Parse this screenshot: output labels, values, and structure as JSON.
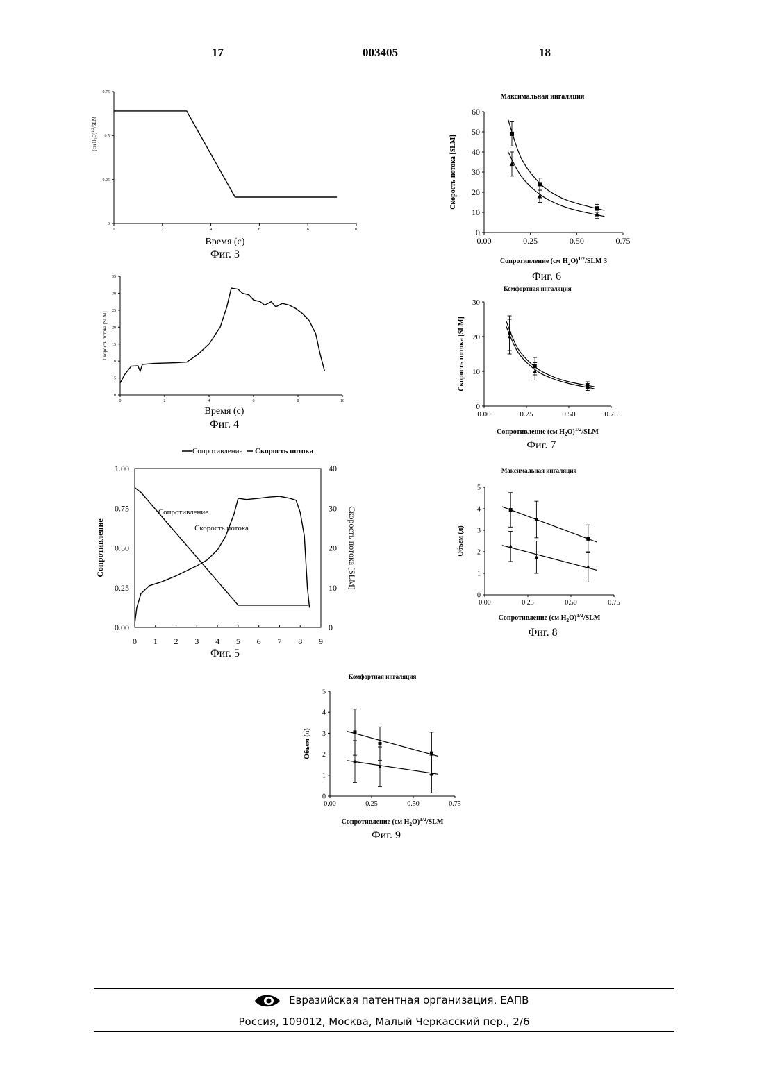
{
  "header": {
    "page_left": "17",
    "doc_number": "003405",
    "page_right": "18"
  },
  "footer": {
    "org": "Евразийская патентная организация, ЕАПВ",
    "address": "Россия, 109012, Москва, Малый Черкасский пер., 2/6"
  },
  "chart_data": [
    {
      "id": "fig3",
      "type": "line",
      "caption": "Фиг. 3",
      "xlabel": "Время (с)",
      "ylabel": "(см H2O)1/2/SLM",
      "xlim": [
        0,
        10
      ],
      "ylim": [
        0,
        0.75
      ],
      "xticks": [
        "0",
        "2",
        "4",
        "6",
        "8",
        "10"
      ],
      "yticks": [
        "0",
        "0.25",
        "0.5",
        "0.75"
      ],
      "series": [
        {
          "points": [
            [
              0,
              0.64
            ],
            [
              3,
              0.64
            ],
            [
              5,
              0.15
            ],
            [
              9.2,
              0.15
            ]
          ]
        }
      ]
    },
    {
      "id": "fig4",
      "type": "line",
      "caption": "Фиг. 4",
      "xlabel": "Время (с)",
      "ylabel": "Скорость потока [SLM]",
      "xlim": [
        0,
        10
      ],
      "ylim": [
        0,
        35
      ],
      "xticks": [
        "0",
        "2",
        "4",
        "6",
        "8",
        "10"
      ],
      "yticks": [
        "0",
        "5",
        "10",
        "15",
        "20",
        "25",
        "30",
        "35"
      ],
      "series": [
        {
          "points": [
            [
              0,
              3.5
            ],
            [
              0.2,
              6
            ],
            [
              0.5,
              8.5
            ],
            [
              0.8,
              8.6
            ],
            [
              0.9,
              7
            ],
            [
              1.0,
              9
            ],
            [
              1.5,
              9.3
            ],
            [
              2.5,
              9.5
            ],
            [
              3.0,
              9.7
            ],
            [
              3.5,
              12
            ],
            [
              4.0,
              15
            ],
            [
              4.5,
              20
            ],
            [
              4.8,
              26
            ],
            [
              5.0,
              31.5
            ],
            [
              5.3,
              31.2
            ],
            [
              5.5,
              30
            ],
            [
              5.8,
              29.5
            ],
            [
              6.0,
              28
            ],
            [
              6.3,
              27.5
            ],
            [
              6.5,
              26.5
            ],
            [
              6.8,
              27.5
            ],
            [
              7.0,
              26
            ],
            [
              7.3,
              27
            ],
            [
              7.6,
              26.5
            ],
            [
              7.9,
              25.5
            ],
            [
              8.2,
              24
            ],
            [
              8.5,
              22
            ],
            [
              8.8,
              18
            ],
            [
              9.0,
              12
            ],
            [
              9.2,
              7
            ]
          ]
        }
      ]
    },
    {
      "id": "fig5",
      "type": "line",
      "caption": "Фиг. 5",
      "legend": [
        "Сопротивление",
        "Скорость потока"
      ],
      "ylabel_left": "Сопротивление",
      "ylabel_right": "Скорость потока [SLM]",
      "xlim": [
        0,
        9
      ],
      "ylim_left": [
        0,
        1
      ],
      "ylim_right": [
        0,
        40
      ],
      "xticks": [
        "0",
        "1",
        "2",
        "3",
        "4",
        "5",
        "6",
        "7",
        "8",
        "9"
      ],
      "yticks_left": [
        "0.00",
        "0.25",
        "0.50",
        "0.75",
        "1.00"
      ],
      "yticks_right": [
        "0",
        "10",
        "20",
        "30",
        "40"
      ],
      "annotations": [
        "Сопротивление",
        "Скорость потока"
      ],
      "resistance": [
        [
          0,
          0.88
        ],
        [
          0.3,
          0.85
        ],
        [
          5.0,
          0.14
        ],
        [
          8.4,
          0.14
        ]
      ],
      "flow": [
        [
          0,
          1
        ],
        [
          0.1,
          5
        ],
        [
          0.3,
          8.5
        ],
        [
          0.7,
          10.5
        ],
        [
          1.3,
          11.5
        ],
        [
          2,
          13
        ],
        [
          3,
          15.5
        ],
        [
          3.5,
          17
        ],
        [
          4.0,
          19.5
        ],
        [
          4.4,
          23
        ],
        [
          4.8,
          28.5
        ],
        [
          5.0,
          32.5
        ],
        [
          5.4,
          32.2
        ],
        [
          6.0,
          32.5
        ],
        [
          6.5,
          32.8
        ],
        [
          7.0,
          33
        ],
        [
          7.5,
          32.5
        ],
        [
          7.8,
          32
        ],
        [
          8.0,
          29
        ],
        [
          8.2,
          23
        ],
        [
          8.35,
          10
        ],
        [
          8.45,
          5
        ]
      ]
    },
    {
      "id": "fig6",
      "type": "scatter",
      "caption": "Фиг. 6",
      "title": "Максимальная ингаляция",
      "xlabel": "Сопротивление (см H2O)1/2/SLM 3",
      "ylabel": "Скорость потока [SLM]",
      "xlim": [
        0,
        0.75
      ],
      "ylim": [
        0,
        60
      ],
      "xticks": [
        "0.00",
        "0.25",
        "0.50",
        "0.75"
      ],
      "yticks": [
        "0",
        "10",
        "20",
        "30",
        "40",
        "50",
        "60"
      ],
      "series": [
        {
          "marker": "square",
          "x": [
            0.15,
            0.3,
            0.61
          ],
          "y": [
            49,
            24,
            12
          ],
          "err": [
            6,
            3,
            2
          ],
          "fit": [
            [
              0.13,
              56
            ],
            [
              0.2,
              37
            ],
            [
              0.3,
              24.5
            ],
            [
              0.4,
              18
            ],
            [
              0.5,
              14.5
            ],
            [
              0.65,
              11
            ]
          ]
        },
        {
          "marker": "triangle",
          "x": [
            0.15,
            0.3,
            0.61
          ],
          "y": [
            34,
            18,
            9
          ],
          "err": [
            6,
            3,
            2
          ],
          "fit": [
            [
              0.13,
              40
            ],
            [
              0.2,
              28
            ],
            [
              0.3,
              19
            ],
            [
              0.4,
              14
            ],
            [
              0.5,
              11
            ],
            [
              0.65,
              8
            ]
          ]
        }
      ]
    },
    {
      "id": "fig7",
      "type": "scatter",
      "caption": "Фиг. 7",
      "title": "Комфортная ингаляция",
      "xlabel": "Сопротивление (см H2O)1/2/SLM",
      "ylabel": "Скорость потока [SLM]",
      "xlim": [
        0,
        0.75
      ],
      "ylim": [
        0,
        30
      ],
      "xticks": [
        "0.00",
        "0.25",
        "0.50",
        "0.75"
      ],
      "yticks": [
        "0",
        "10",
        "20",
        "30"
      ],
      "series": [
        {
          "marker": "square",
          "x": [
            0.15,
            0.3,
            0.61
          ],
          "y": [
            21,
            11.5,
            6
          ],
          "err": [
            5,
            2.5,
            1
          ],
          "fit": [
            [
              0.13,
              24.5
            ],
            [
              0.2,
              16.5
            ],
            [
              0.3,
              11.3
            ],
            [
              0.4,
              8.6
            ],
            [
              0.5,
              7
            ],
            [
              0.65,
              5.6
            ]
          ]
        },
        {
          "marker": "triangle",
          "x": [
            0.15,
            0.3,
            0.61
          ],
          "y": [
            20,
            10,
            5.5
          ],
          "err": [
            5,
            2.5,
            1
          ],
          "fit": [
            [
              0.13,
              23
            ],
            [
              0.2,
              15.5
            ],
            [
              0.3,
              10.5
            ],
            [
              0.4,
              8
            ],
            [
              0.5,
              6.5
            ],
            [
              0.65,
              5
            ]
          ]
        }
      ]
    },
    {
      "id": "fig8",
      "type": "scatter",
      "caption": "Фиг. 8",
      "title": "Максимальная ингаляция",
      "xlabel": "Сопротивление (см H2O)1/2/SLM",
      "ylabel": "Объем (л)",
      "xlim": [
        0,
        0.75
      ],
      "ylim": [
        0,
        5
      ],
      "xticks": [
        "0.00",
        "0.25",
        "0.50",
        "0.75"
      ],
      "yticks": [
        "0",
        "1",
        "2",
        "3",
        "4",
        "5"
      ],
      "series": [
        {
          "marker": "square",
          "x": [
            0.15,
            0.3,
            0.6
          ],
          "y": [
            3.95,
            3.5,
            2.6
          ],
          "err": [
            0.8,
            0.85,
            0.65
          ],
          "fit": [
            [
              0.1,
              4.1
            ],
            [
              0.65,
              2.45
            ]
          ]
        },
        {
          "marker": "triangle",
          "x": [
            0.15,
            0.3,
            0.6
          ],
          "y": [
            2.25,
            1.75,
            1.3
          ],
          "err": [
            0.7,
            0.75,
            0.7
          ],
          "fit": [
            [
              0.1,
              2.3
            ],
            [
              0.65,
              1.15
            ]
          ]
        }
      ]
    },
    {
      "id": "fig9",
      "type": "scatter",
      "caption": "Фиг. 9",
      "title": "Комфортная ингаляция",
      "xlabel": "Сопротивление (см H2O)1/2/SLM",
      "ylabel": "Объем (л)",
      "xlim": [
        0,
        0.75
      ],
      "ylim": [
        0,
        5
      ],
      "xticks": [
        "0.00",
        "0.25",
        "0.50",
        "0.75"
      ],
      "yticks": [
        "0",
        "1",
        "2",
        "3",
        "4",
        "5"
      ],
      "series": [
        {
          "marker": "square",
          "x": [
            0.15,
            0.3,
            0.61
          ],
          "y": [
            3.05,
            2.5,
            2.05
          ],
          "err": [
            1.1,
            0.8,
            1.0
          ],
          "fit": [
            [
              0.1,
              3.1
            ],
            [
              0.65,
              1.9
            ]
          ]
        },
        {
          "marker": "triangle",
          "x": [
            0.15,
            0.3,
            0.61
          ],
          "y": [
            1.65,
            1.4,
            1.05
          ],
          "err": [
            1.0,
            0.95,
            0.9
          ],
          "fit": [
            [
              0.1,
              1.7
            ],
            [
              0.65,
              1.05
            ]
          ]
        }
      ]
    }
  ]
}
